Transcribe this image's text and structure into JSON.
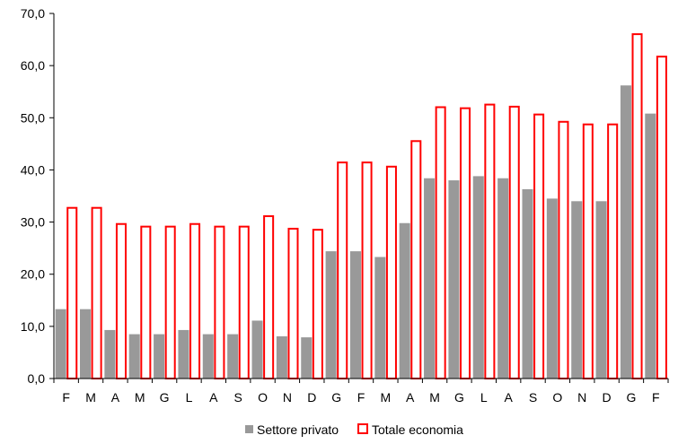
{
  "chart_data": {
    "type": "bar",
    "categories": [
      "F",
      "M",
      "A",
      "M",
      "G",
      "L",
      "A",
      "S",
      "O",
      "N",
      "D",
      "G",
      "F",
      "M",
      "A",
      "M",
      "G",
      "L",
      "A",
      "S",
      "O",
      "N",
      "D",
      "G",
      "F"
    ],
    "series": [
      {
        "name": "Settore privato",
        "color": "#999999",
        "style": "filled",
        "values": [
          13.3,
          13.3,
          9.3,
          8.5,
          8.5,
          9.3,
          8.5,
          8.5,
          11.1,
          8.1,
          7.9,
          24.4,
          24.4,
          23.3,
          29.8,
          38.4,
          38.0,
          38.8,
          38.4,
          36.3,
          34.5,
          34.0,
          34.0,
          56.2,
          50.8
        ]
      },
      {
        "name": "Totale economia",
        "color": "#ff0000",
        "style": "outline",
        "values": [
          32.9,
          32.9,
          29.8,
          29.3,
          29.3,
          29.8,
          29.3,
          29.3,
          31.3,
          28.9,
          28.7,
          41.6,
          41.6,
          40.8,
          45.7,
          52.2,
          52.0,
          52.7,
          52.3,
          50.8,
          49.4,
          48.9,
          48.9,
          66.2,
          61.9
        ]
      }
    ],
    "ylim": [
      0,
      70
    ],
    "yticks": [
      "0,0",
      "10,0",
      "20,0",
      "30,0",
      "40,0",
      "50,0",
      "60,0",
      "70,0"
    ],
    "grid": false,
    "legend_position": "bottom"
  }
}
